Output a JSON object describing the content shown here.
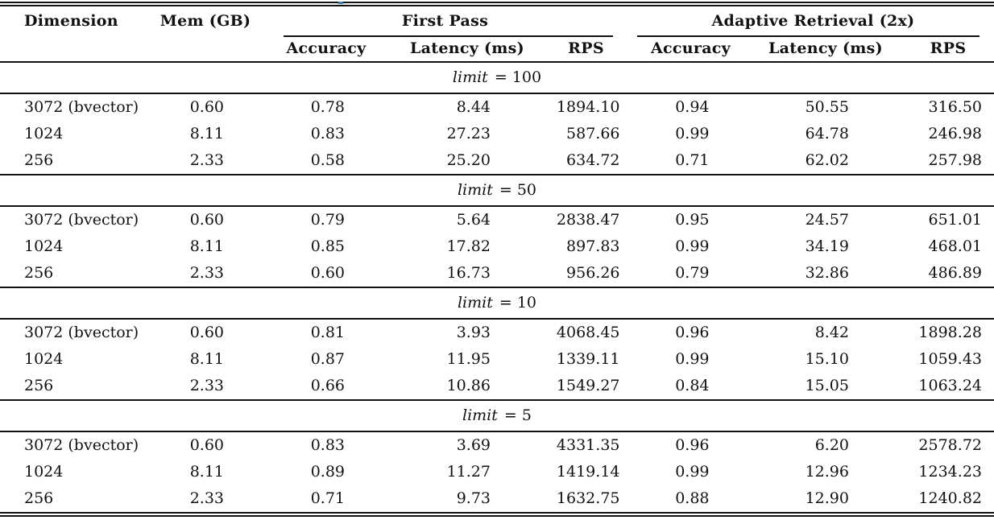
{
  "meta": {
    "background_color": "#ffffff",
    "text_color": "#111111",
    "rule_color": "#111111",
    "artifact_color": "#3a7ca5"
  },
  "table": {
    "headers": {
      "dimension": "Dimension",
      "mem": "Mem (GB)",
      "group_first_pass": "First Pass",
      "group_adaptive": "Adaptive Retrieval (2x)",
      "sub": [
        "Accuracy",
        "Latency (ms)",
        "RPS",
        "Accuracy",
        "Latency (ms)",
        "RPS"
      ]
    },
    "sections": [
      {
        "limit_var": "limit",
        "limit_value": "100",
        "rows": [
          [
            "3072 (bvector)",
            "0.60",
            "0.78",
            "8.44",
            "1894.10",
            "0.94",
            "50.55",
            "316.50"
          ],
          [
            "1024",
            "8.11",
            "0.83",
            "27.23",
            "587.66",
            "0.99",
            "64.78",
            "246.98"
          ],
          [
            "256",
            "2.33",
            "0.58",
            "25.20",
            "634.72",
            "0.71",
            "62.02",
            "257.98"
          ]
        ]
      },
      {
        "limit_var": "limit",
        "limit_value": "50",
        "rows": [
          [
            "3072 (bvector)",
            "0.60",
            "0.79",
            "5.64",
            "2838.47",
            "0.95",
            "24.57",
            "651.01"
          ],
          [
            "1024",
            "8.11",
            "0.85",
            "17.82",
            "897.83",
            "0.99",
            "34.19",
            "468.01"
          ],
          [
            "256",
            "2.33",
            "0.60",
            "16.73",
            "956.26",
            "0.79",
            "32.86",
            "486.89"
          ]
        ]
      },
      {
        "limit_var": "limit",
        "limit_value": "10",
        "rows": [
          [
            "3072 (bvector)",
            "0.60",
            "0.81",
            "3.93",
            "4068.45",
            "0.96",
            "8.42",
            "1898.28"
          ],
          [
            "1024",
            "8.11",
            "0.87",
            "11.95",
            "1339.11",
            "0.99",
            "15.10",
            "1059.43"
          ],
          [
            "256",
            "2.33",
            "0.66",
            "10.86",
            "1549.27",
            "0.84",
            "15.05",
            "1063.24"
          ]
        ]
      },
      {
        "limit_var": "limit",
        "limit_value": "5",
        "rows": [
          [
            "3072 (bvector)",
            "0.60",
            "0.83",
            "3.69",
            "4331.35",
            "0.96",
            "6.20",
            "2578.72"
          ],
          [
            "1024",
            "8.11",
            "0.89",
            "11.27",
            "1419.14",
            "0.99",
            "12.96",
            "1234.23"
          ],
          [
            "256",
            "2.33",
            "0.71",
            "9.73",
            "1632.75",
            "0.88",
            "12.90",
            "1240.82"
          ]
        ]
      }
    ]
  }
}
